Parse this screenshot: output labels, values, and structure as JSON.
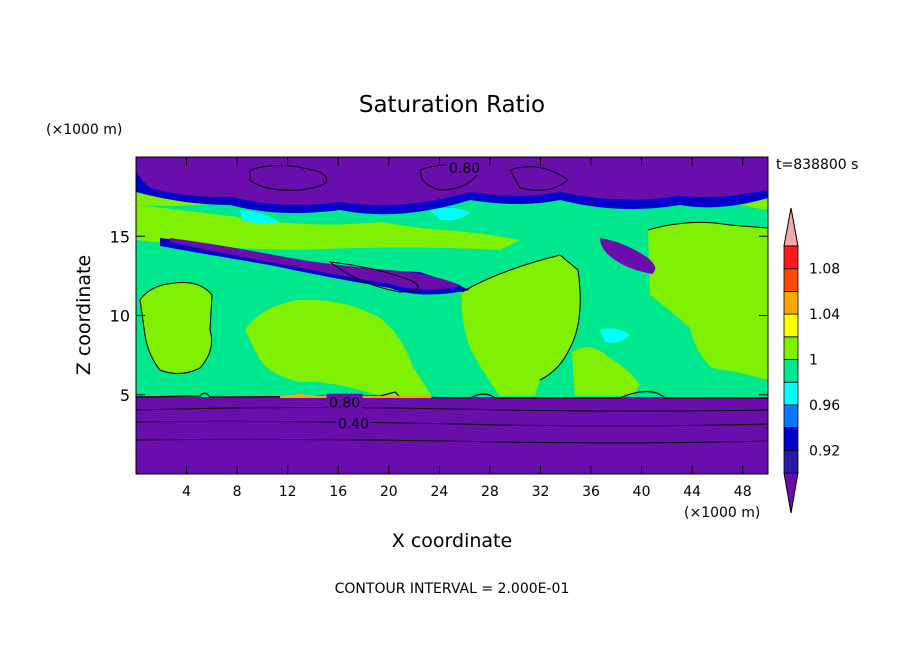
{
  "chart_data": {
    "type": "heatmap",
    "title": "Saturation Ratio",
    "xlabel": "X coordinate",
    "ylabel": "Z coordinate",
    "x_unit": "(×1000 m)",
    "y_unit": "(×1000 m)",
    "time_label": "t=838800 s",
    "footer": "CONTOUR INTERVAL = 2.000E-01",
    "xlim": [
      0,
      50
    ],
    "ylim": [
      0,
      20
    ],
    "x_ticks": [
      4,
      8,
      12,
      16,
      20,
      24,
      28,
      32,
      36,
      40,
      44,
      48
    ],
    "y_ticks": [
      5,
      10,
      15
    ],
    "contour_labels": [
      {
        "text": "0.80",
        "x": 26,
        "z": 19.3
      },
      {
        "text": "0.80",
        "x": 16.5,
        "z": 4.5
      },
      {
        "text": "0.40",
        "x": 17.2,
        "z": 3.2
      }
    ],
    "colorbar": {
      "colors": [
        "#6a0dad",
        "#2a1aa8",
        "#0000cd",
        "#0b78ff",
        "#00ffff",
        "#00e88e",
        "#7ff000",
        "#ffff00",
        "#ffa500",
        "#ff4a00",
        "#ff1a1a",
        "#f4a8a8"
      ],
      "tick_labels": [
        "0.92",
        "0.96",
        "1",
        "1.04",
        "1.08"
      ]
    },
    "regions": {
      "below_5km": "#6a0dad",
      "middle": "#00e88e",
      "moist": "#7ff000",
      "dry_band": "#6a0dad",
      "dry_edge": "#0000cd",
      "transition": "#00ffff"
    }
  }
}
